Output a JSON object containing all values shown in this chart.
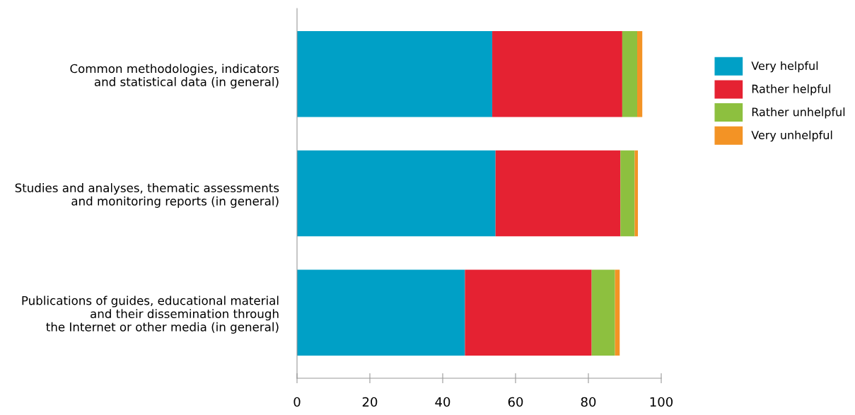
{
  "chart_data": {
    "type": "bar",
    "orientation": "horizontal",
    "stacked": true,
    "categories": [
      "Common methodologies, indicators\nand statistical data (in general)",
      "Studies and analyses, thematic assessments\nand monitoring reports (in general)",
      "Publications of guides, educational material\nand their dissemination through\nthe Internet or other media (in general)"
    ],
    "series": [
      {
        "name": "Very helpful",
        "color": "#00a0c6",
        "values": [
          53.6,
          54.5,
          46.1
        ]
      },
      {
        "name": "Rather helpful",
        "color": "#e52232",
        "values": [
          35.7,
          34.3,
          34.8
        ]
      },
      {
        "name": "Rather unhelpful",
        "color": "#8dc03f",
        "values": [
          4.1,
          3.9,
          6.4
        ]
      },
      {
        "name": "Very unhelpful",
        "color": "#f39325",
        "values": [
          1.4,
          0.9,
          1.3
        ]
      }
    ],
    "xlim": [
      0,
      100
    ],
    "xticks": [
      0,
      20,
      40,
      60,
      80,
      100
    ],
    "grid": false,
    "legend": "right"
  }
}
